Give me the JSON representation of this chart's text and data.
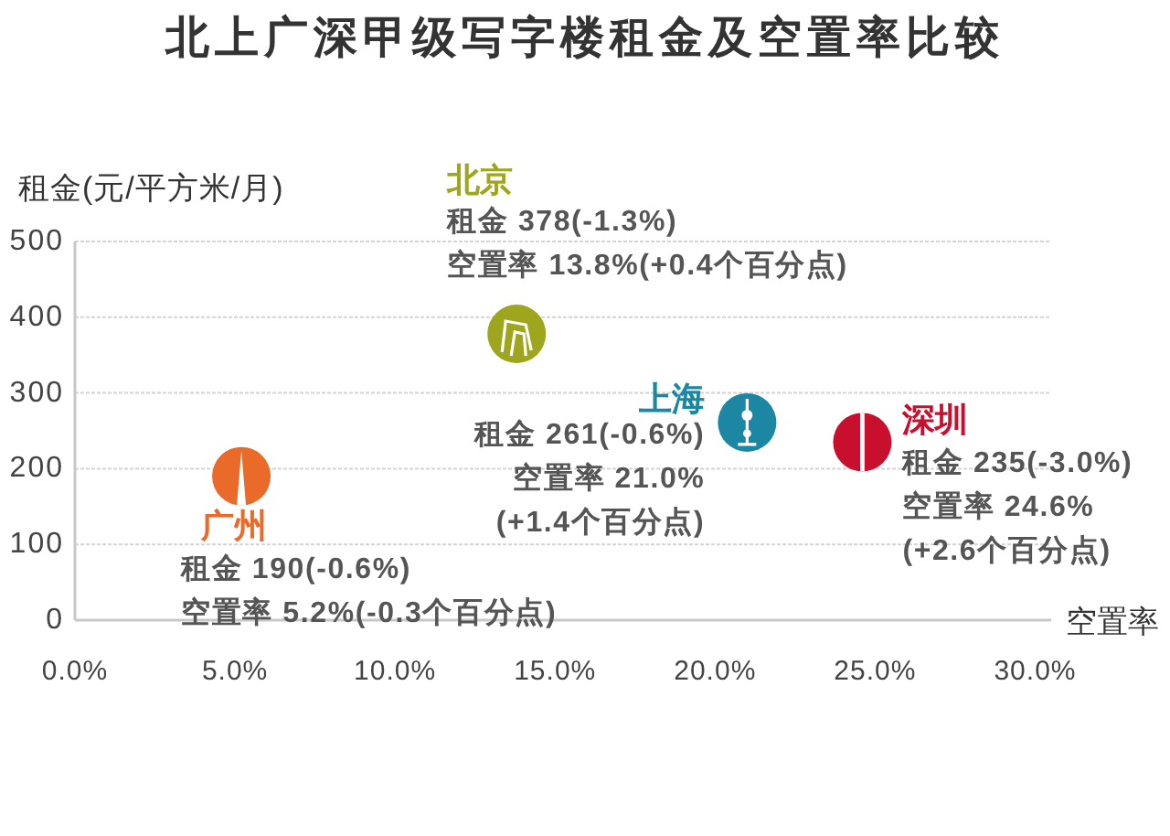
{
  "chart_data": {
    "type": "scatter",
    "title": "北上广深甲级写字楼租金及空置率比较",
    "xlabel": "空置率",
    "ylabel": "租金(元/平方米/月)",
    "xlim": [
      0,
      30.5
    ],
    "xticks": [
      {
        "value": 0,
        "label": "0.0%"
      },
      {
        "value": 5,
        "label": "5.0%"
      },
      {
        "value": 10,
        "label": "10.0%"
      },
      {
        "value": 15,
        "label": "15.0%"
      },
      {
        "value": 20,
        "label": "20.0%"
      },
      {
        "value": 25,
        "label": "25.0%"
      },
      {
        "value": 30,
        "label": "30.0%"
      }
    ],
    "ylim": [
      0,
      500
    ],
    "yticks": [
      0,
      100,
      200,
      300,
      400,
      500
    ],
    "grid": "y",
    "marker": "circle",
    "series": [
      {
        "name": "北京",
        "color": "#9da61c",
        "x": [
          13.8
        ],
        "values": [
          378
        ]
      },
      {
        "name": "上海",
        "color": "#1b87a2",
        "x": [
          21.0
        ],
        "values": [
          261
        ]
      },
      {
        "name": "广州",
        "color": "#ea6a2a",
        "x": [
          5.2
        ],
        "values": [
          190
        ]
      },
      {
        "name": "深圳",
        "color": "#c8102e",
        "x": [
          24.6
        ],
        "values": [
          235
        ]
      }
    ],
    "annotations": [
      {
        "text": "租金 378(-1.3%)\n空置率 13.8%(+0.4个百分点)",
        "x": 13.8,
        "y": 378
      },
      {
        "text": "租金 261(-0.6%)\n空置率 21.0%\n(+1.4个百分点)",
        "x": 21.0,
        "y": 261
      },
      {
        "text": "租金 190(-0.6%)\n空置率 5.2%(-0.3个百分点)",
        "x": 5.2,
        "y": 190
      },
      {
        "text": "租金 235(-3.0%)\n空置率 24.6%\n(+2.6个百分点)",
        "x": 24.6,
        "y": 235
      }
    ]
  }
}
